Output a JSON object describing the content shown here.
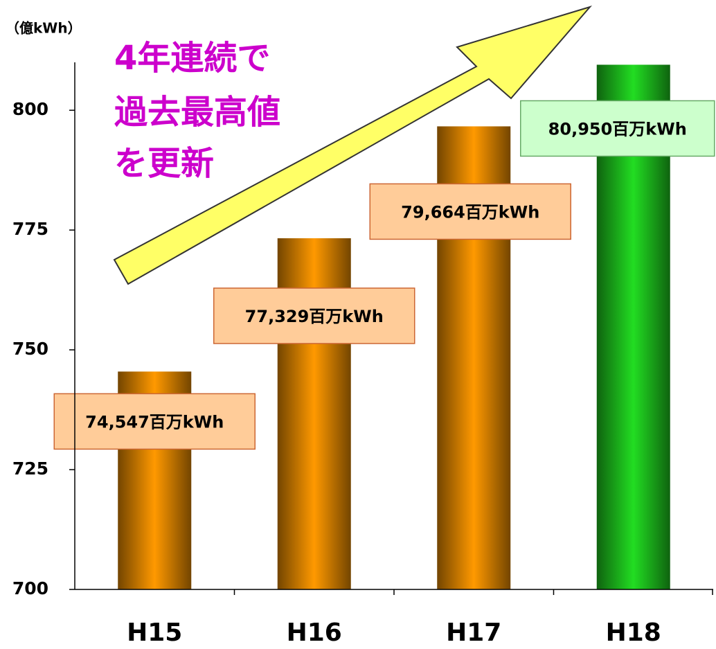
{
  "chart_data": {
    "type": "bar",
    "y_axis_label": "（億kWh）",
    "annotation": [
      "4年連続で",
      "過去最高値",
      "を更新"
    ],
    "categories": [
      "H15",
      "H16",
      "H17",
      "H18"
    ],
    "values": [
      745.47,
      773.29,
      796.64,
      809.5
    ],
    "value_labels": [
      "74,547百万kWh",
      "77,329百万kWh",
      "79,664百万kWh",
      "80,950百万kWh"
    ],
    "colors": [
      "#ff9900",
      "#ff9900",
      "#ff9900",
      "#22dd22"
    ],
    "label_box_colors": [
      "#ffcc99",
      "#ffcc99",
      "#ffcc99",
      "#ccffcc"
    ],
    "ylim": [
      700,
      810
    ],
    "yticks": [
      700,
      725,
      750,
      775,
      800
    ]
  }
}
